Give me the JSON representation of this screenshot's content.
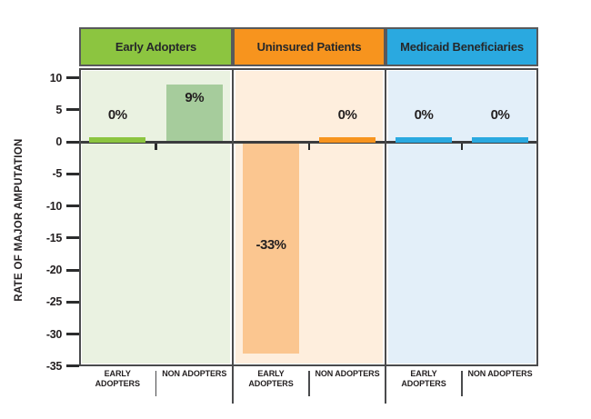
{
  "colors": {
    "background": "#ffffff",
    "frame": "#4a4b4d",
    "header_border": "#58595b",
    "header_text": "#26282a",
    "axis_text": "#231f20",
    "zero_line": "#3b3c3e",
    "tick": "#2b2c2d"
  },
  "chart_data": {
    "type": "bar",
    "title": "",
    "ylabel": "RATE OF MAJOR AMPUTATION",
    "ylim": [
      -35,
      10
    ],
    "yticks": [
      10,
      5,
      0,
      -5,
      -10,
      -15,
      -20,
      -25,
      -30,
      -35
    ],
    "grid": false,
    "legend_position": "none",
    "panels": [
      {
        "title": "Early Adopters",
        "accent_color": "#8cc540",
        "panel_bg_color": "#eaf2e1",
        "muted_bar_color": "#a6cc9c",
        "categories": [
          "EARLY ADOPTERS",
          "NON ADOPTERS"
        ],
        "values": [
          0,
          9
        ],
        "value_labels": [
          "0%",
          "9%"
        ]
      },
      {
        "title": "Uninsured Patients",
        "accent_color": "#f7941e",
        "panel_bg_color": "#feeedd",
        "muted_bar_color": "#fbc690",
        "categories": [
          "EARLY ADOPTERS",
          "NON ADOPTERS"
        ],
        "values": [
          -33,
          0
        ],
        "value_labels": [
          "-33%",
          "0%"
        ]
      },
      {
        "title": "Medicaid Beneficiaries",
        "accent_color": "#2aa9e0",
        "panel_bg_color": "#e3eff9",
        "categories": [
          "EARLY ADOPTERS",
          "NON ADOPTERS"
        ],
        "values": [
          0,
          0
        ],
        "value_labels": [
          "0%",
          "0%"
        ]
      }
    ]
  }
}
